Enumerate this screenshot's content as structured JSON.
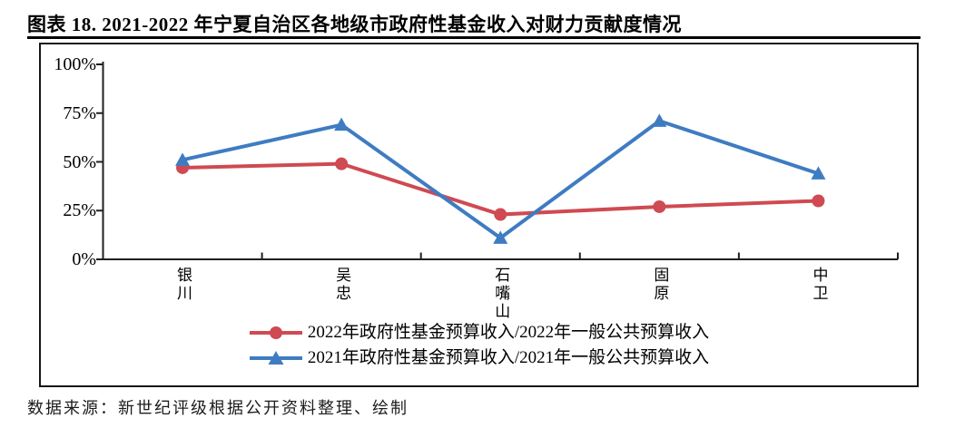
{
  "chart_data": {
    "type": "line",
    "title": "图表 18. 2021-2022 年宁夏自治区各地级市政府性基金收入对财力贡献度情况",
    "categories": [
      "银川",
      "吴忠",
      "石嘴山",
      "固原",
      "中卫"
    ],
    "series": [
      {
        "name": "2022年政府性基金预算收入/2022年一般公共预算收入",
        "marker": "circle",
        "color": "#CF4A52",
        "values": [
          47,
          49,
          23,
          27,
          30
        ]
      },
      {
        "name": "2021年政府性基金预算收入/2021年一般公共预算收入",
        "marker": "triangle",
        "color": "#3E7CC2",
        "values": [
          51,
          69,
          11,
          71,
          44
        ]
      }
    ],
    "ylim": [
      0,
      100
    ],
    "ytick_values": [
      0,
      25,
      50,
      75,
      100
    ],
    "ytick_labels": [
      "0%",
      "25%",
      "50%",
      "75%",
      "100%"
    ],
    "xlabel": "",
    "ylabel": "",
    "grid": false,
    "legend_position": "bottom",
    "axis_color": "#1f1f1f"
  },
  "source": {
    "text": "数据来源：新世纪评级根据公开资料整理、绘制"
  }
}
